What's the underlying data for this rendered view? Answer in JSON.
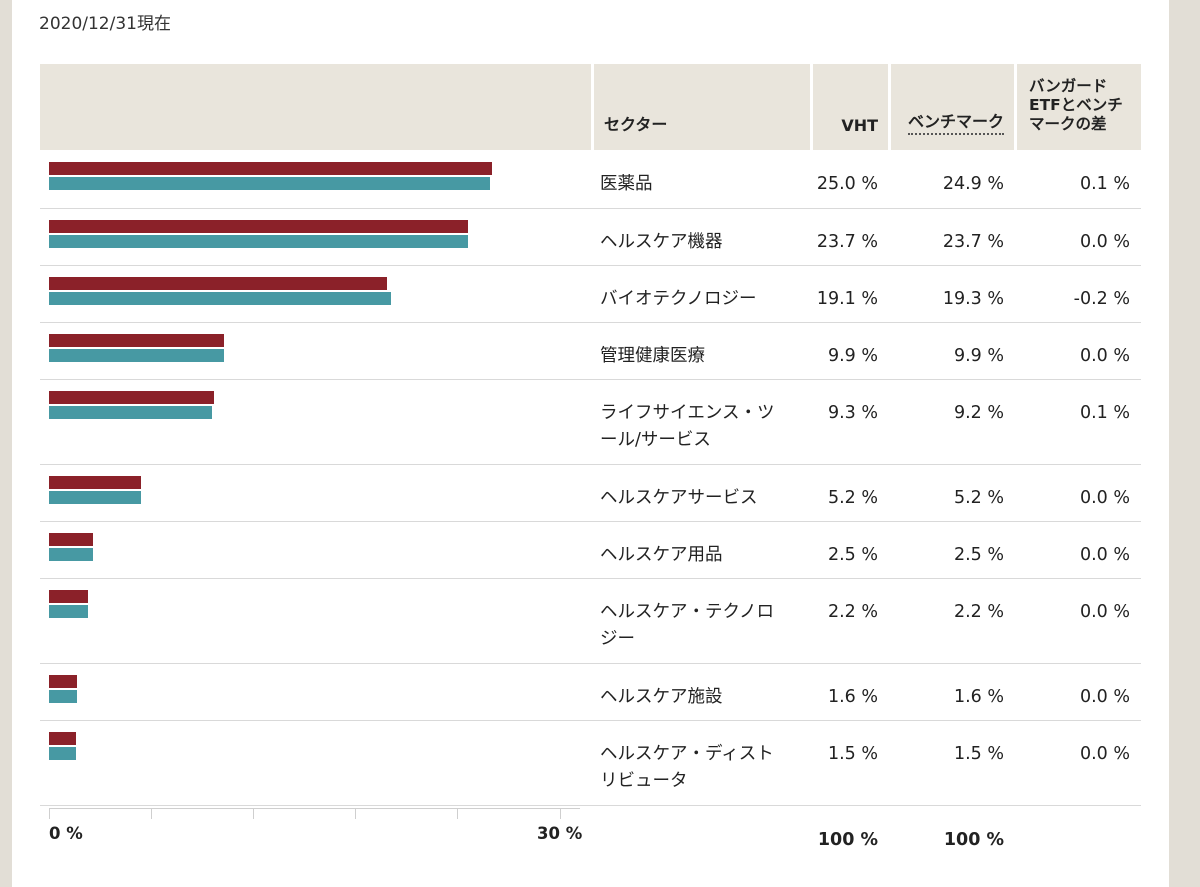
{
  "as_of": "2020/12/31現在",
  "header": {
    "sector": "セクター",
    "vht": "VHT",
    "benchmark": "ベンチマーク",
    "diff_line1": "バンガード",
    "diff_line2": "ETFとベンチ",
    "diff_line3": "マークの差"
  },
  "colors": {
    "vht": "#8b2129",
    "benchmark": "#4799a3"
  },
  "rows": [
    {
      "sector_l1": "医薬品",
      "sector_l2": "",
      "vht": "25.0 %",
      "benchmark": "24.9 %",
      "diff": "0.1 %"
    },
    {
      "sector_l1": "ヘルスケア機器",
      "sector_l2": "",
      "vht": "23.7 %",
      "benchmark": "23.7 %",
      "diff": "0.0 %"
    },
    {
      "sector_l1": "バイオテクノロジー",
      "sector_l2": "",
      "vht": "19.1 %",
      "benchmark": "19.3 %",
      "diff": "-0.2 %"
    },
    {
      "sector_l1": "管理健康医療",
      "sector_l2": "",
      "vht": "9.9 %",
      "benchmark": "9.9 %",
      "diff": "0.0 %"
    },
    {
      "sector_l1": "ライフサイエンス・ツ",
      "sector_l2": "ール/サービス",
      "vht": "9.3 %",
      "benchmark": "9.2 %",
      "diff": "0.1 %"
    },
    {
      "sector_l1": "ヘルスケアサービス",
      "sector_l2": "",
      "vht": "5.2 %",
      "benchmark": "5.2 %",
      "diff": "0.0 %"
    },
    {
      "sector_l1": "ヘルスケア用品",
      "sector_l2": "",
      "vht": "2.5 %",
      "benchmark": "2.5 %",
      "diff": "0.0 %"
    },
    {
      "sector_l1": "ヘルスケア・テクノロ",
      "sector_l2": "ジー",
      "vht": "2.2 %",
      "benchmark": "2.2 %",
      "diff": "0.0 %"
    },
    {
      "sector_l1": "ヘルスケア施設",
      "sector_l2": "",
      "vht": "1.6 %",
      "benchmark": "1.6 %",
      "diff": "0.0 %"
    },
    {
      "sector_l1": "ヘルスケア・ディスト",
      "sector_l2": "リビュータ",
      "vht": "1.5 %",
      "benchmark": "1.5 %",
      "diff": "0.0 %"
    }
  ],
  "axis": {
    "min_label": "0 %",
    "max_label": "30 %"
  },
  "totals": {
    "vht": "100 %",
    "benchmark": "100 %"
  },
  "chart_data": {
    "type": "bar",
    "orientation": "horizontal",
    "categories": [
      "医薬品",
      "ヘルスケア機器",
      "バイオテクノロジー",
      "管理健康医療",
      "ライフサイエンス・ツール/サービス",
      "ヘルスケアサービス",
      "ヘルスケア用品",
      "ヘルスケア・テクノロジー",
      "ヘルスケア施設",
      "ヘルスケア・ディストリビュータ"
    ],
    "series": [
      {
        "name": "VHT",
        "values": [
          25.0,
          23.7,
          19.1,
          9.9,
          9.3,
          5.2,
          2.5,
          2.2,
          1.6,
          1.5
        ]
      },
      {
        "name": "ベンチマーク",
        "values": [
          24.9,
          23.7,
          19.3,
          9.9,
          9.2,
          5.2,
          2.5,
          2.2,
          1.6,
          1.5
        ]
      }
    ],
    "xlim": [
      0,
      30
    ],
    "grid": false
  }
}
